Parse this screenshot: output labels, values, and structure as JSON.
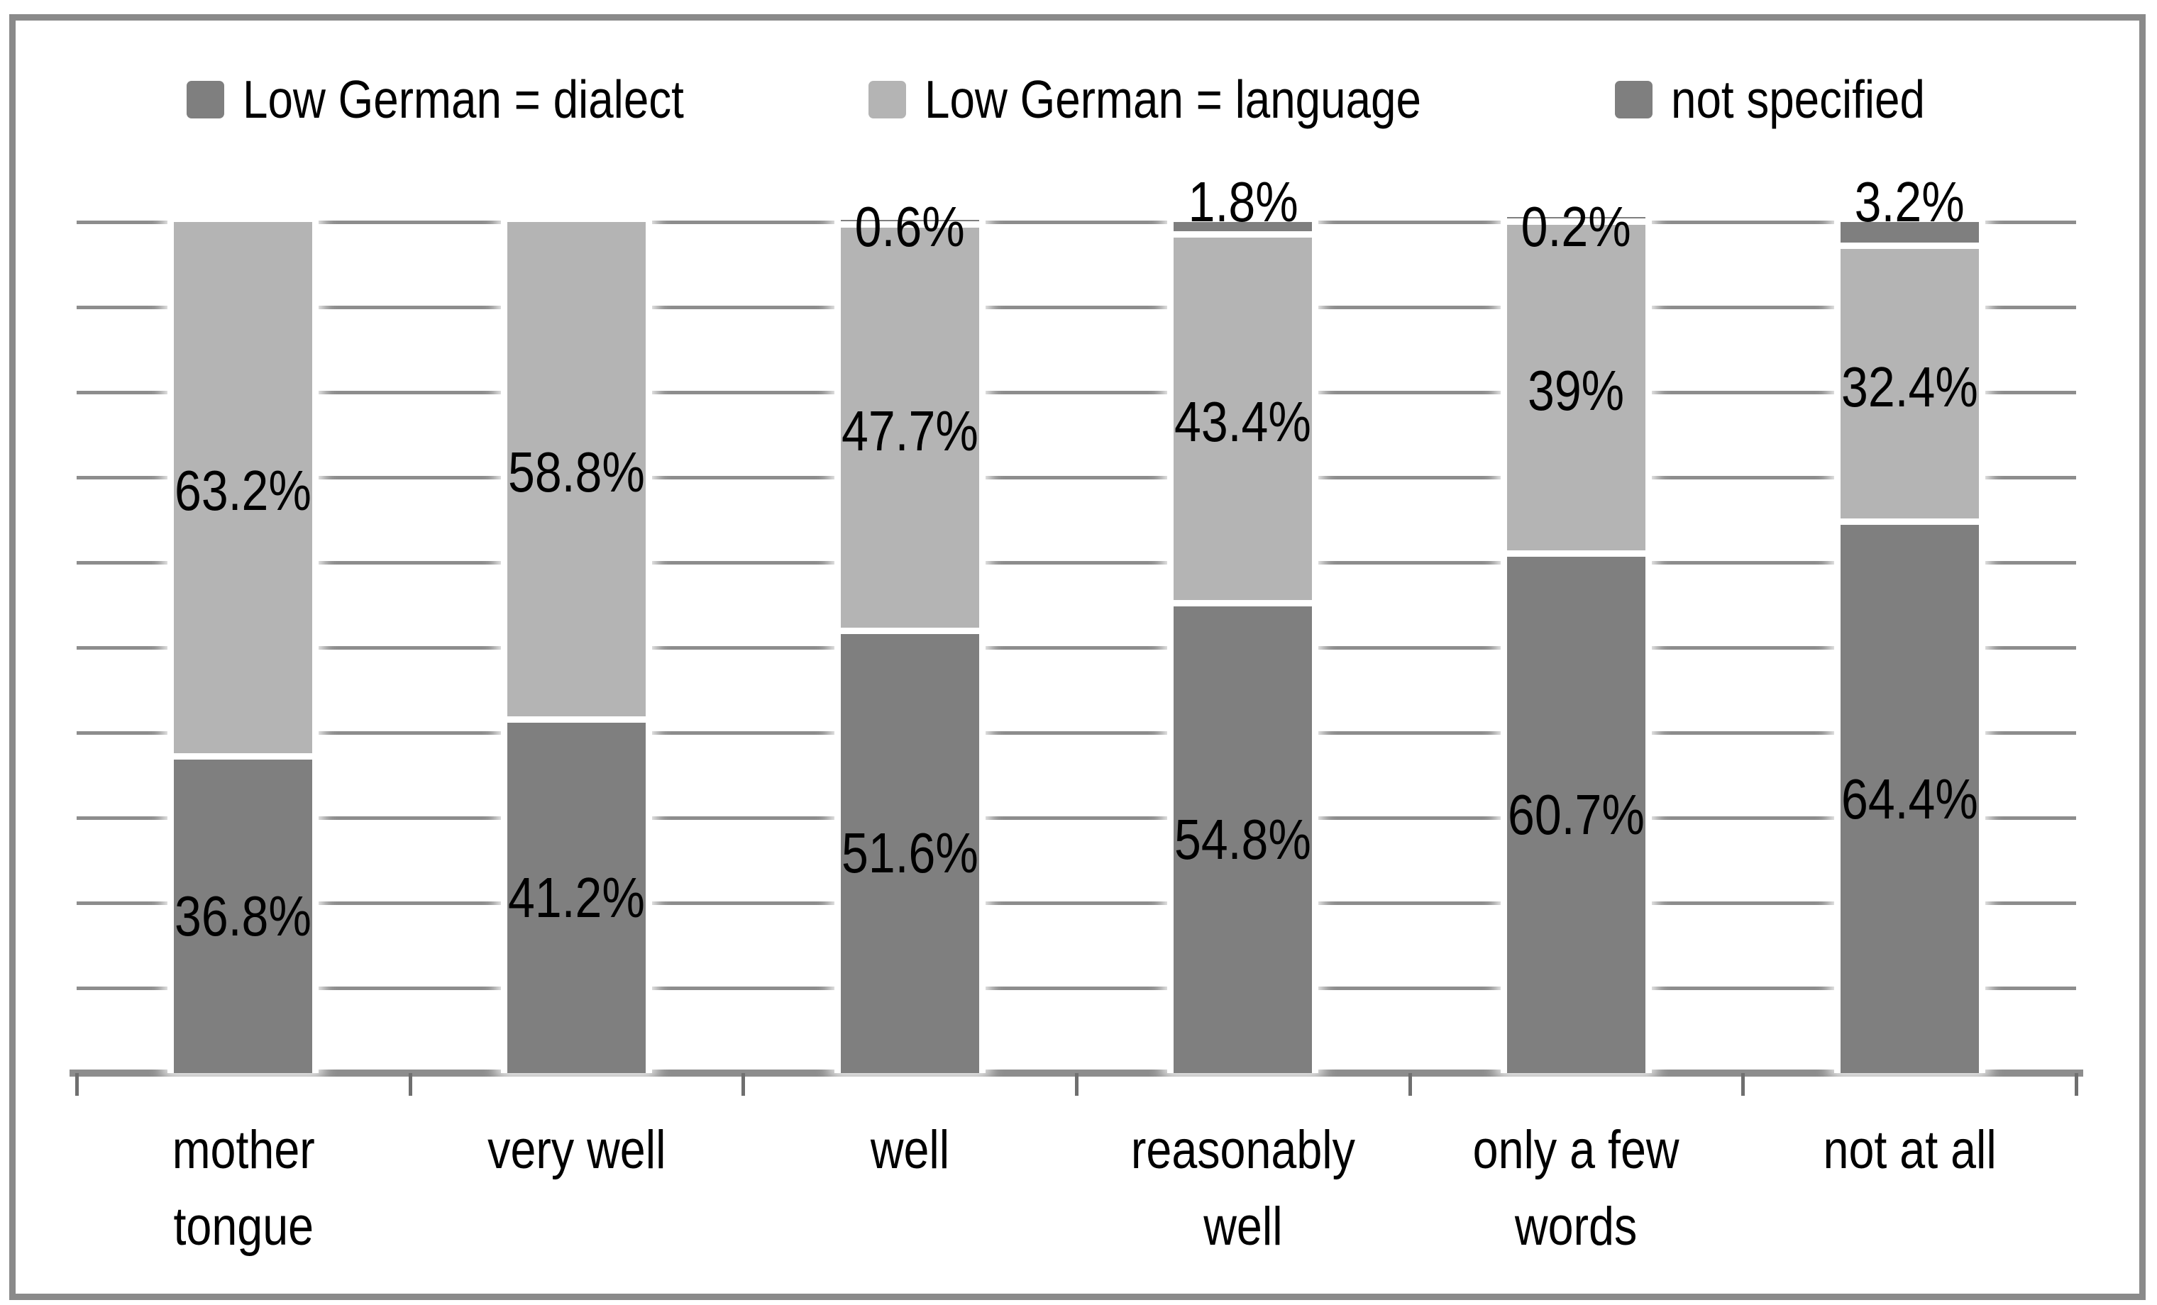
{
  "figure": {
    "frame_border_color": "#8a8a8a",
    "background_color": "#ffffff"
  },
  "chart_data": {
    "type": "bar",
    "stacked": true,
    "orientation": "vertical",
    "title": "",
    "xlabel": "",
    "ylabel": "",
    "categories": [
      "mother tongue",
      "very well",
      "well",
      "reasonably well",
      "only a few words",
      "not at all"
    ],
    "category_label_lines": [
      [
        "mother",
        "tongue"
      ],
      [
        "very well"
      ],
      [
        "well"
      ],
      [
        "reasonably",
        "well"
      ],
      [
        "only a few",
        "words"
      ],
      [
        "not at all"
      ]
    ],
    "series": [
      {
        "name": "Low German = dialect",
        "color": "#7f7f7f",
        "values": [
          36.8,
          41.2,
          51.6,
          54.8,
          60.7,
          64.4
        ],
        "data_labels": [
          "36.8%",
          "41.2%",
          "51.6%",
          "54.8%",
          "60.7%",
          "64.4%"
        ]
      },
      {
        "name": "Low German = language",
        "color": "#b4b4b4",
        "values": [
          63.2,
          58.8,
          47.7,
          43.4,
          39,
          32.4
        ],
        "data_labels": [
          "63.2%",
          "58.8%",
          "47.7%",
          "43.4%",
          "39%",
          "32.4%"
        ]
      },
      {
        "name": "not specified",
        "color": "#7f7f7f",
        "values": [
          0,
          0,
          0.6,
          1.8,
          0.2,
          3.2
        ],
        "data_labels": [
          null,
          null,
          "0.6%",
          "1.8%",
          "0.2%",
          "3.2%"
        ]
      }
    ],
    "ylim": [
      0,
      100
    ],
    "y_gridline_step_percent": 10,
    "grid": true,
    "y_axis_tick_labels_visible": false,
    "legend_position": "top",
    "gridline_color": "#8d8d8d",
    "axis_line_color": "#8d8d8d",
    "tick_mark_color": "#6f6f6f",
    "data_label_color": "#000000"
  }
}
